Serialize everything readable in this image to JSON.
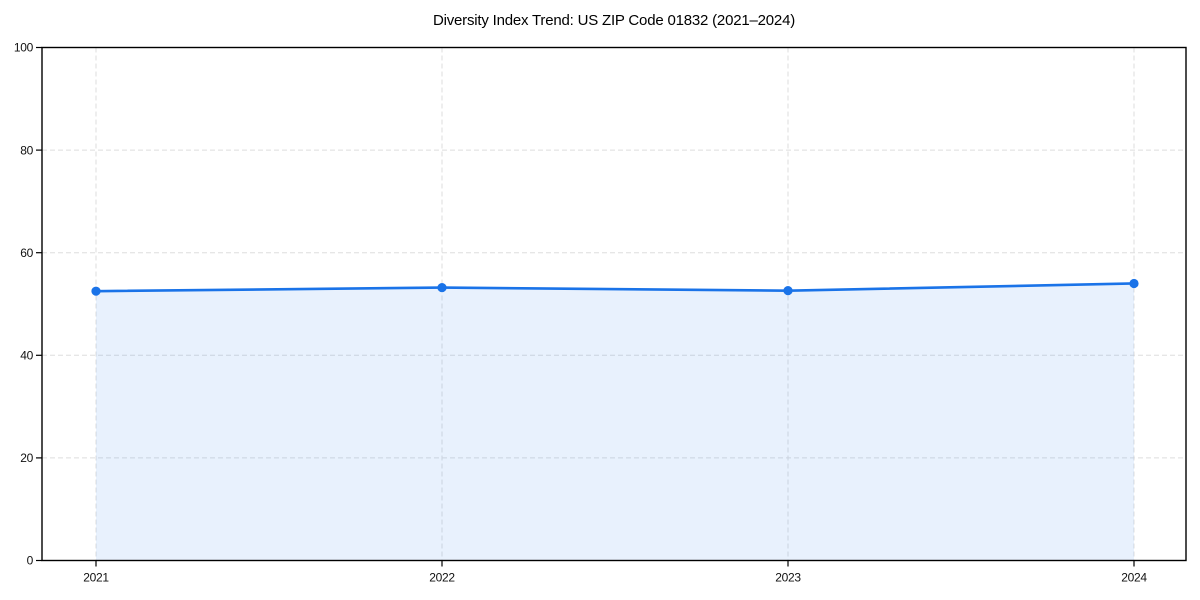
{
  "chart_data": {
    "type": "line",
    "title": "Diversity Index Trend: US ZIP Code 01832 (2021–2024)",
    "x": [
      "2021",
      "2022",
      "2023",
      "2024"
    ],
    "series": [
      {
        "name": "Diversity Index",
        "values": [
          52.5,
          53.2,
          52.6,
          54.0
        ]
      }
    ],
    "xlabel": "",
    "ylabel": "",
    "ylim": [
      0,
      100
    ],
    "yticks": [
      0,
      20,
      40,
      60,
      80,
      100
    ],
    "grid": "dashed-both-axes",
    "legend_position": "none",
    "marker": "circle",
    "colors": {
      "line": "#1a73e8",
      "marker": "#1a73e8",
      "area_fill": "rgba(26,115,232,0.10)",
      "gridline": "#dedede",
      "spine": "#000000",
      "tick_label": "#111111",
      "background": "#ffffff"
    }
  }
}
